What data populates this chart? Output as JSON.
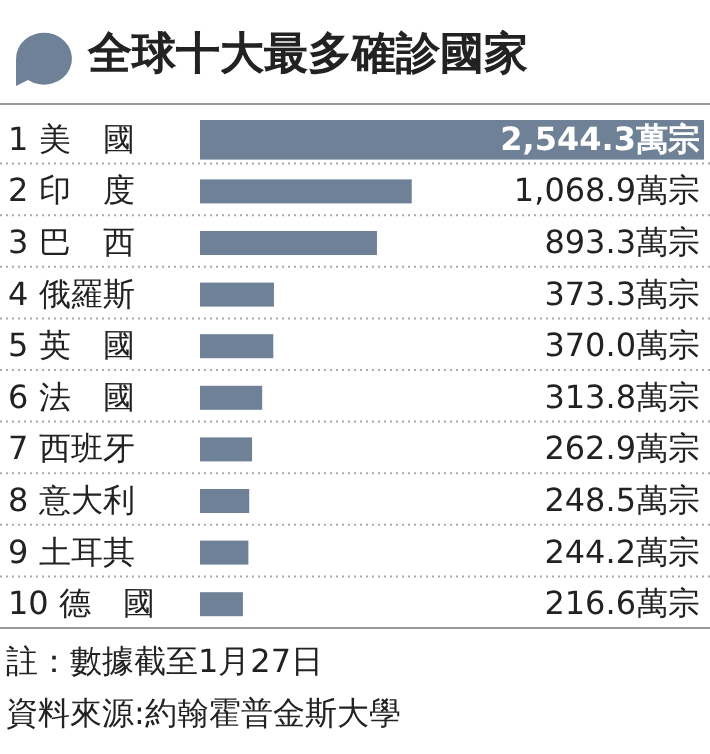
{
  "chart_data": {
    "type": "bar",
    "orientation": "horizontal",
    "title": "全球十大最多確診國家",
    "categories": [
      "1 美　國",
      "2 印　度",
      "3 巴　西",
      "4 俄羅斯",
      "5 英　國",
      "6 法　國",
      "7 西班牙",
      "8 意大利",
      "9 土耳其",
      "10 德　國"
    ],
    "values": [
      2544.3,
      1068.9,
      893.3,
      373.3,
      370.0,
      313.8,
      262.9,
      248.5,
      244.2,
      216.6
    ],
    "value_labels": [
      "2,544.3萬宗",
      "1,068.9萬宗",
      "893.3萬宗",
      "373.3萬宗",
      "370.0萬宗",
      "313.8萬宗",
      "262.9萬宗",
      "248.5萬宗",
      "244.2萬宗",
      "216.6萬宗"
    ],
    "color": "#6e8197",
    "annotations": [
      "註：數據截至1月27日",
      "資料來源:約翰霍普金斯大學"
    ]
  }
}
